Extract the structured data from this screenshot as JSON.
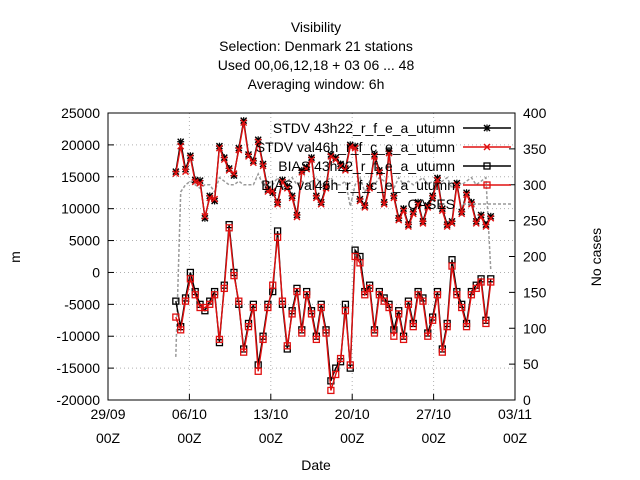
{
  "title_lines": [
    "Visibility",
    "Selection: Denmark      21 stations",
    "Used  00,06,12,18  + 03 06 ... 48",
    "Averaging window:  6h"
  ],
  "chart_data": {
    "type": "line",
    "xlabel": "Date",
    "ylabel": "m",
    "y2label": "No cases",
    "ylim": [
      -20000,
      25000
    ],
    "y2lim": [
      0,
      400
    ],
    "y_ticks": [
      "25000",
      "20000",
      "15000",
      "10000",
      "5000",
      "0",
      "-5000",
      "-10000",
      "-15000",
      "-20000"
    ],
    "y2_ticks": [
      "400",
      "350",
      "300",
      "250",
      "200",
      "150",
      "100",
      "50",
      "0"
    ],
    "x_ticks": [
      {
        "date": "29/09",
        "hour": "00Z"
      },
      {
        "date": "06/10",
        "hour": "00Z"
      },
      {
        "date": "13/10",
        "hour": "00Z"
      },
      {
        "date": "20/10",
        "hour": "00Z"
      },
      {
        "date": "27/10",
        "hour": "00Z"
      },
      {
        "date": "03/11",
        "hour": "00Z"
      }
    ],
    "grid": true,
    "legend_position": "top-right",
    "series": [
      {
        "name": "STDV 43h22_r_f_e_a_utumn",
        "color": "#000000",
        "marker": "star",
        "axis": "left",
        "x": [
          0.0,
          0.5,
          1.0,
          1.5,
          2.0,
          2.5,
          3.0,
          3.5,
          4.0,
          4.5,
          5.0,
          5.5,
          6.0,
          6.5,
          7.0,
          7.5,
          8.0,
          8.5,
          9.0,
          9.5,
          10.0,
          10.5,
          11.0,
          11.5,
          12.0,
          12.5,
          13.0,
          13.5,
          14.0,
          14.5,
          15.0,
          15.5,
          16.0,
          16.5,
          17.0,
          17.5,
          18.0,
          18.5,
          19.0,
          19.5,
          20.0,
          20.5,
          21.0,
          21.5,
          22.0,
          22.5,
          23.0,
          23.5,
          24.0,
          24.5,
          25.0,
          25.5,
          26.0,
          26.5,
          27.0,
          27.5,
          28.0,
          28.5,
          29.0,
          29.5,
          30.0,
          30.5,
          31.0,
          31.5,
          32.0,
          32.5
        ],
        "values": [
          15800,
          20500,
          16200,
          18300,
          14500,
          14400,
          8500,
          12000,
          11200,
          19800,
          18000,
          16300,
          15200,
          19500,
          23800,
          18500,
          17500,
          20800,
          17000,
          13000,
          12500,
          11000,
          14500,
          13500,
          12000,
          9000,
          16000,
          16500,
          18000,
          12000,
          11000,
          13500,
          18500,
          18000,
          17000,
          16300,
          20000,
          19800,
          11500,
          10500,
          13500,
          18500,
          16000,
          11000,
          19000,
          12000,
          8500,
          10000,
          7500,
          9500,
          11000,
          8000,
          10500,
          12000,
          14800,
          10000,
          7500,
          8000,
          14000,
          9500,
          12500,
          11000,
          8000,
          9000,
          7500,
          8800
        ]
      },
      {
        "name": "STDV val46h_r_f_c_e_a_utumn",
        "color": "#e01010",
        "marker": "x",
        "axis": "left",
        "x": [
          0.0,
          0.5,
          1.0,
          1.5,
          2.0,
          2.5,
          3.0,
          3.5,
          4.0,
          4.5,
          5.0,
          5.5,
          6.0,
          6.5,
          7.0,
          7.5,
          8.0,
          8.5,
          9.0,
          9.5,
          10.0,
          10.5,
          11.0,
          11.5,
          12.0,
          12.5,
          13.0,
          13.5,
          14.0,
          14.5,
          15.0,
          15.5,
          16.0,
          16.5,
          17.0,
          17.5,
          18.0,
          18.5,
          19.0,
          19.5,
          20.0,
          20.5,
          21.0,
          21.5,
          22.0,
          22.5,
          23.0,
          23.5,
          24.0,
          24.5,
          25.0,
          25.5,
          26.0,
          26.5,
          27.0,
          27.5,
          28.0,
          28.5,
          29.0,
          29.5,
          30.0,
          30.5,
          31.0,
          31.5,
          32.0,
          32.5
        ],
        "values": [
          15500,
          19800,
          15800,
          18000,
          14200,
          14000,
          8800,
          11700,
          11500,
          19500,
          17700,
          16000,
          15500,
          19200,
          23500,
          18200,
          17200,
          20500,
          16700,
          12700,
          12800,
          10700,
          14200,
          13200,
          11700,
          8700,
          15700,
          16200,
          17700,
          11700,
          10700,
          13200,
          18200,
          17700,
          16700,
          16000,
          19700,
          19500,
          11200,
          10200,
          13200,
          18200,
          15700,
          10700,
          18700,
          11700,
          8200,
          9700,
          7200,
          9200,
          10700,
          7700,
          10200,
          11700,
          14500,
          9700,
          7200,
          7700,
          13700,
          9200,
          12200,
          10700,
          7700,
          8700,
          7200,
          8500
        ]
      },
      {
        "name": "BIAS 43h22_r_f_e_a_utumn",
        "color": "#000000",
        "marker": "square",
        "axis": "left",
        "x": [
          0.0,
          0.5,
          1.0,
          1.5,
          2.0,
          2.5,
          3.0,
          3.5,
          4.0,
          4.5,
          5.0,
          5.5,
          6.0,
          6.5,
          7.0,
          7.5,
          8.0,
          8.5,
          9.0,
          9.5,
          10.0,
          10.5,
          11.0,
          11.5,
          12.0,
          12.5,
          13.0,
          13.5,
          14.0,
          14.5,
          15.0,
          15.5,
          16.0,
          16.5,
          17.0,
          17.5,
          18.0,
          18.5,
          19.0,
          19.5,
          20.0,
          20.5,
          21.0,
          21.5,
          22.0,
          22.5,
          23.0,
          23.5,
          24.0,
          24.5,
          25.0,
          25.5,
          26.0,
          26.5,
          27.0,
          27.5,
          28.0,
          28.5,
          29.0,
          29.5,
          30.0,
          30.5,
          31.0,
          31.5,
          32.0,
          32.5
        ],
        "values": [
          -4500,
          -8500,
          -4000,
          0,
          -3000,
          -5000,
          -6000,
          -4500,
          -3000,
          -11000,
          -2000,
          7500,
          0,
          -5000,
          -12000,
          -8000,
          -5000,
          -14500,
          -10000,
          -5000,
          -3000,
          6500,
          -5000,
          -12000,
          -6000,
          -2500,
          -9000,
          -3000,
          -6000,
          -10000,
          -5000,
          -9000,
          -17000,
          -15000,
          -14000,
          -5000,
          -15000,
          3500,
          2500,
          -3000,
          -2000,
          -9000,
          -3000,
          -4000,
          -5000,
          -9000,
          -6000,
          -10000,
          -4500,
          -8000,
          -3000,
          -4000,
          -9500,
          -7000,
          -3000,
          -12000,
          -8000,
          2000,
          -3000,
          -5000,
          -8000,
          -3000,
          -2000,
          -1000,
          -7500,
          -1000
        ]
      },
      {
        "name": "BIAS val46h_r_f_c_e_a_utumn",
        "color": "#e01010",
        "marker": "square",
        "axis": "left",
        "x": [
          0.0,
          0.5,
          1.0,
          1.5,
          2.0,
          2.5,
          3.0,
          3.5,
          4.0,
          4.5,
          5.0,
          5.5,
          6.0,
          6.5,
          7.0,
          7.5,
          8.0,
          8.5,
          9.0,
          9.5,
          10.0,
          10.5,
          11.0,
          11.5,
          12.0,
          12.5,
          13.0,
          13.5,
          14.0,
          14.5,
          15.0,
          15.5,
          16.0,
          16.5,
          17.0,
          17.5,
          18.0,
          18.5,
          19.0,
          19.5,
          20.0,
          20.5,
          21.0,
          21.5,
          22.0,
          22.5,
          23.0,
          23.5,
          24.0,
          24.5,
          25.0,
          25.5,
          26.0,
          26.5,
          27.0,
          27.5,
          28.0,
          28.5,
          29.0,
          29.5,
          30.0,
          30.5,
          31.0,
          31.5,
          32.0,
          32.5
        ],
        "values": [
          -7000,
          -9000,
          -4500,
          -1000,
          -3500,
          -5500,
          -5500,
          -5000,
          -3500,
          -10500,
          -2500,
          7000,
          -500,
          -4500,
          -12500,
          -8500,
          -5500,
          -15500,
          -10500,
          -5500,
          -2000,
          5500,
          -4500,
          -11500,
          -6500,
          -3000,
          -9500,
          -3500,
          -6500,
          -10500,
          -5500,
          -9500,
          -18500,
          -16000,
          -13500,
          -6000,
          -14500,
          2500,
          1500,
          -3500,
          -2500,
          -9500,
          -3500,
          -4500,
          -5500,
          -10000,
          -6500,
          -10500,
          -5000,
          -8500,
          -3500,
          -4500,
          -10000,
          -7500,
          -3500,
          -12500,
          -8500,
          1000,
          -3500,
          -5500,
          -8500,
          -3500,
          -2500,
          -1500,
          -8000,
          -1500
        ]
      },
      {
        "name": "CASES",
        "color": "#999999",
        "marker": "none",
        "axis": "right",
        "dashed": true,
        "x": [
          0.0,
          0.5,
          1.0,
          1.5,
          2.0,
          2.5,
          3.0,
          3.5,
          4.0,
          4.5,
          5.0,
          5.5,
          6.0,
          6.5,
          7.0,
          7.5,
          8.0,
          8.5,
          9.0,
          9.5,
          10.0,
          10.5,
          11.0,
          11.5,
          12.0,
          12.5,
          13.0,
          13.5,
          14.0,
          14.5,
          15.0,
          15.5,
          16.0,
          16.5,
          17.0,
          17.5,
          18.0,
          18.5,
          19.0,
          19.5,
          20.0,
          20.5,
          21.0,
          21.5,
          22.0,
          22.5,
          23.0,
          23.5,
          24.0,
          24.5,
          25.0,
          25.5,
          26.0,
          26.5,
          27.0,
          27.5,
          28.0,
          28.5,
          29.0,
          29.5,
          30.0,
          30.5,
          31.0,
          31.5,
          32.0,
          32.5
        ],
        "values": [
          60,
          290,
          300,
          305,
          300,
          295,
          300,
          300,
          290,
          310,
          305,
          300,
          300,
          305,
          300,
          300,
          300,
          315,
          300,
          305,
          300,
          310,
          295,
          305,
          310,
          300,
          305,
          300,
          305,
          310,
          300,
          305,
          310,
          300,
          300,
          305,
          270,
          300,
          310,
          290,
          305,
          300,
          310,
          305,
          300,
          295,
          310,
          300,
          305,
          300,
          305,
          310,
          300,
          305,
          300,
          305,
          310,
          295,
          305,
          300,
          305,
          310,
          300,
          305,
          310,
          180
        ]
      }
    ]
  }
}
